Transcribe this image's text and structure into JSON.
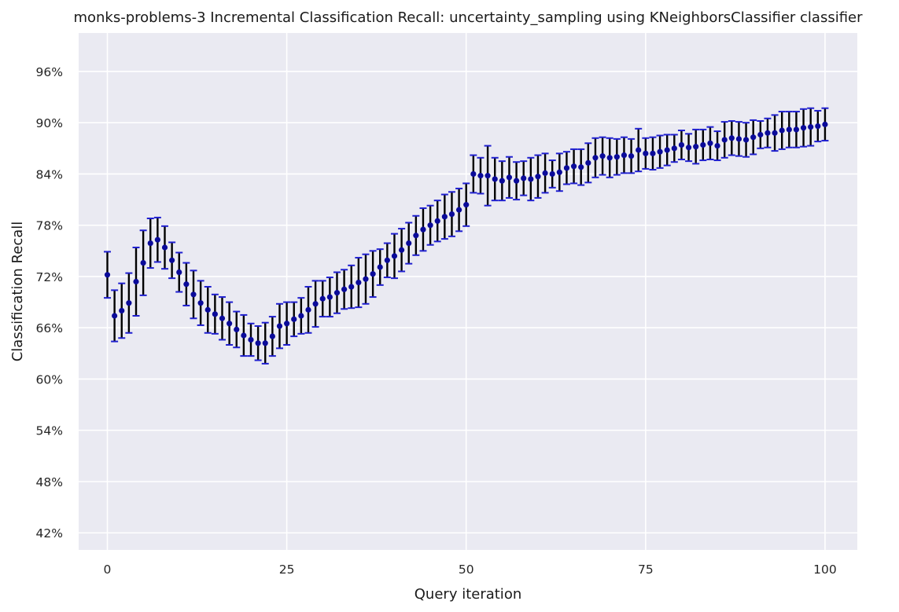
{
  "chart_data": {
    "type": "scatter",
    "title": "monks-problems-3 Incremental Classification Recall: uncertainty_sampling using KNeighborsClassifier classifier",
    "xlabel": "Query iteration",
    "ylabel": "Classification Recall",
    "xlim": [
      -4,
      104.5
    ],
    "ylim": [
      40.0,
      100.5
    ],
    "xticks": [
      0,
      25,
      50,
      75,
      100
    ],
    "xtick_labels": [
      "0",
      "25",
      "50",
      "75",
      "100"
    ],
    "yticks": [
      42,
      48,
      54,
      60,
      66,
      72,
      78,
      84,
      90,
      96
    ],
    "ytick_labels": [
      "42%",
      "48%",
      "54%",
      "60%",
      "66%",
      "72%",
      "78%",
      "84%",
      "90%",
      "96%"
    ],
    "grid": true,
    "legend": "none",
    "colors": {
      "background": "#eaeaf2",
      "grid": "#ffffff",
      "marker": "#0a0a9a",
      "errorbar": "#000000",
      "cap": "#1f1fd0"
    },
    "series": [
      {
        "x": [
          0,
          1,
          2,
          3,
          4,
          5,
          6,
          7,
          8,
          9,
          10,
          11,
          12,
          13,
          14,
          15,
          16,
          17,
          18,
          19,
          20,
          21,
          22,
          23,
          24,
          25,
          26,
          27,
          28,
          29,
          30,
          31,
          32,
          33,
          34,
          35,
          36,
          37,
          38,
          39,
          40,
          41,
          42,
          43,
          44,
          45,
          46,
          47,
          48,
          49,
          50,
          51,
          52,
          53,
          54,
          55,
          56,
          57,
          58,
          59,
          60,
          61,
          62,
          63,
          64,
          65,
          66,
          67,
          68,
          69,
          70,
          71,
          72,
          73,
          74,
          75,
          76,
          77,
          78,
          79,
          80,
          81,
          82,
          83,
          84,
          85,
          86,
          87,
          88,
          89,
          90,
          91,
          92,
          93,
          94,
          95,
          96,
          97,
          98,
          99,
          100
        ],
        "y": [
          72.2,
          67.4,
          68.0,
          68.9,
          71.4,
          73.6,
          75.9,
          76.3,
          75.4,
          73.9,
          72.5,
          71.1,
          69.9,
          68.9,
          68.1,
          67.6,
          67.1,
          66.5,
          65.8,
          65.1,
          64.6,
          64.2,
          64.2,
          65.0,
          66.2,
          66.5,
          67.0,
          67.4,
          68.1,
          68.8,
          69.4,
          69.6,
          70.1,
          70.5,
          70.8,
          71.3,
          71.7,
          72.3,
          73.1,
          73.9,
          74.4,
          75.1,
          75.9,
          76.8,
          77.5,
          78.0,
          78.5,
          79.0,
          79.3,
          79.8,
          80.4,
          84.0,
          83.8,
          83.8,
          83.4,
          83.2,
          83.6,
          83.2,
          83.5,
          83.4,
          83.7,
          84.1,
          84.0,
          84.2,
          84.7,
          84.9,
          84.8,
          85.3,
          85.9,
          86.1,
          85.9,
          86.0,
          86.2,
          86.1,
          86.8,
          86.4,
          86.4,
          86.6,
          86.8,
          87.0,
          87.4,
          87.1,
          87.2,
          87.4,
          87.6,
          87.3,
          88.0,
          88.2,
          88.1,
          88.0,
          88.3,
          88.6,
          88.8,
          88.8,
          89.1,
          89.2,
          89.2,
          89.4,
          89.5,
          89.6,
          89.8
        ],
        "yerr": [
          2.7,
          3.0,
          3.2,
          3.5,
          4.0,
          3.8,
          2.9,
          2.6,
          2.5,
          2.1,
          2.3,
          2.5,
          2.8,
          2.6,
          2.7,
          2.3,
          2.5,
          2.5,
          2.1,
          2.4,
          1.9,
          2.0,
          2.4,
          2.3,
          2.6,
          2.5,
          2.0,
          2.1,
          2.7,
          2.7,
          2.1,
          2.3,
          2.4,
          2.3,
          2.5,
          2.9,
          2.9,
          2.7,
          2.1,
          2.0,
          2.6,
          2.5,
          2.4,
          2.3,
          2.5,
          2.3,
          2.4,
          2.6,
          2.6,
          2.5,
          2.5,
          2.2,
          2.1,
          3.5,
          2.5,
          2.3,
          2.4,
          2.2,
          2.0,
          2.5,
          2.5,
          2.3,
          1.6,
          2.2,
          1.9,
          2.0,
          2.1,
          2.3,
          2.3,
          2.2,
          2.3,
          2.1,
          2.1,
          2.0,
          2.5,
          1.8,
          1.9,
          1.9,
          1.8,
          1.6,
          1.7,
          1.6,
          2.0,
          1.8,
          1.9,
          1.7,
          2.1,
          2.0,
          2.0,
          2.0,
          2.0,
          1.6,
          1.7,
          2.1,
          2.2,
          2.1,
          2.1,
          2.2,
          2.2,
          1.8,
          1.9
        ]
      }
    ]
  }
}
